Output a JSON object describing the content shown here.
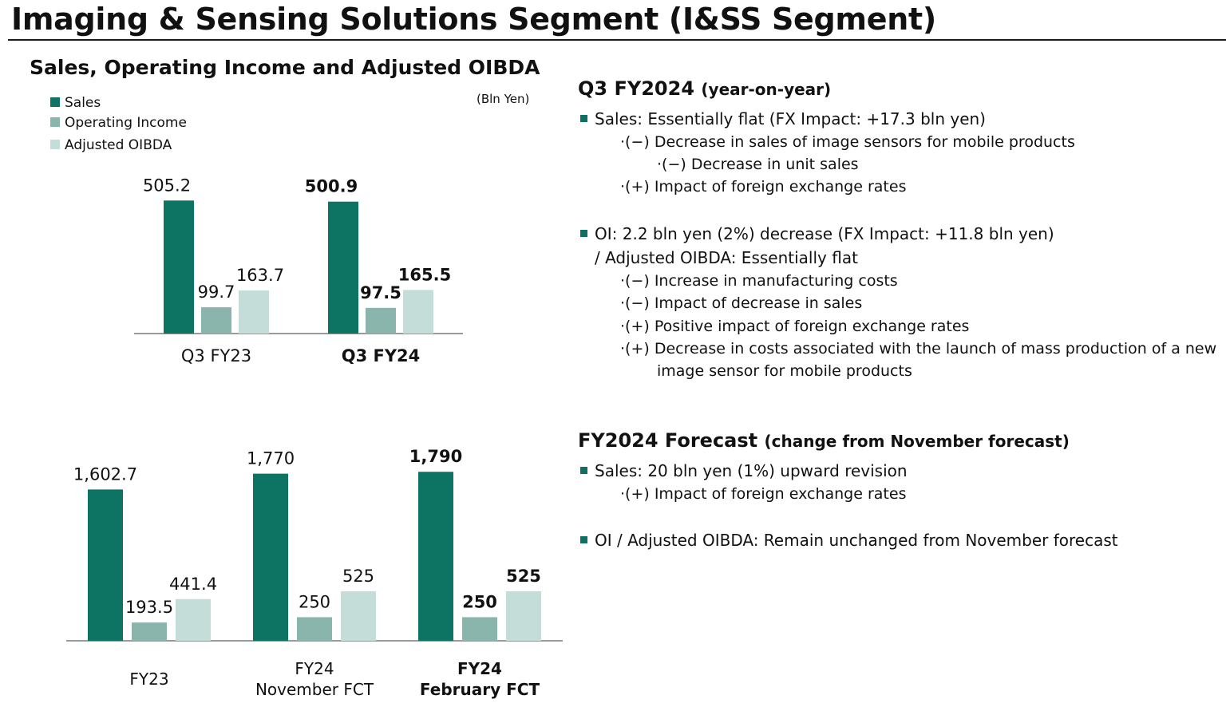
{
  "page": {
    "title": "Imaging & Sensing Solutions Segment (I&SS Segment)",
    "chart_heading": "Sales, Operating Income and Adjusted OIBDA",
    "unit": "(Bln Yen)"
  },
  "colors": {
    "sales": "#0d7363",
    "oi": "#8ab5ad",
    "oibda": "#c5ddd8",
    "bullet": "#0d7060"
  },
  "legend": [
    "Sales",
    "Operating Income",
    "Adjusted OIBDA"
  ],
  "chart_data": [
    {
      "type": "bar",
      "categories": [
        "Q3 FY23",
        "Q3 FY24"
      ],
      "series": [
        {
          "name": "Sales",
          "values": [
            505.2,
            500.9
          ],
          "labels": [
            "505.2",
            "500.9"
          ]
        },
        {
          "name": "Operating Income",
          "values": [
            99.7,
            97.5
          ],
          "labels": [
            "99.7",
            "97.5"
          ]
        },
        {
          "name": "Adjusted OIBDA",
          "values": [
            163.7,
            165.5
          ],
          "labels": [
            "163.7",
            "165.5"
          ]
        }
      ],
      "bold_category_index": 1
    },
    {
      "type": "bar",
      "categories": [
        "FY23",
        "FY24\nNovember FCT",
        "FY24\nFebruary FCT"
      ],
      "series": [
        {
          "name": "Sales",
          "values": [
            1602.7,
            1770,
            1790
          ],
          "labels": [
            "1,602.7",
            "1,770",
            "1,790"
          ]
        },
        {
          "name": "Operating Income",
          "values": [
            193.5,
            250,
            250
          ],
          "labels": [
            "193.5",
            "250",
            "250"
          ]
        },
        {
          "name": "Adjusted OIBDA",
          "values": [
            441.4,
            525,
            525
          ],
          "labels": [
            "441.4",
            "525",
            "525"
          ]
        }
      ],
      "bold_category_index": 2
    }
  ],
  "q3": {
    "heading": "Q3 FY2024",
    "heading_sub": "(year-on-year)",
    "sales_line": "Sales: Essentially flat (FX Impact: +17.3 bln yen)",
    "sales_items": [
      "·(−) Decrease in sales of image sensors for mobile products",
      "·(−) Decrease in unit sales",
      "·(+) Impact of foreign exchange rates"
    ],
    "oi_line": "OI: 2.2 bln yen (2%) decrease (FX Impact: +11.8 bln yen)",
    "oi_line2": "/ Adjusted OIBDA: Essentially flat",
    "oi_items": [
      "·(−) Increase in manufacturing costs",
      "·(−) Impact of decrease in sales",
      "·(+) Positive impact of foreign exchange rates",
      "·(+) Decrease in costs associated with the launch of mass production of a new",
      "image sensor for mobile products"
    ]
  },
  "fy": {
    "heading": "FY2024 Forecast",
    "heading_sub": "(change from November forecast)",
    "sales_line": "Sales: 20 bln yen (1%) upward revision",
    "sales_items": [
      "·(+) Impact of foreign exchange rates"
    ],
    "oi_line": "OI / Adjusted OIBDA: Remain unchanged from November forecast"
  }
}
